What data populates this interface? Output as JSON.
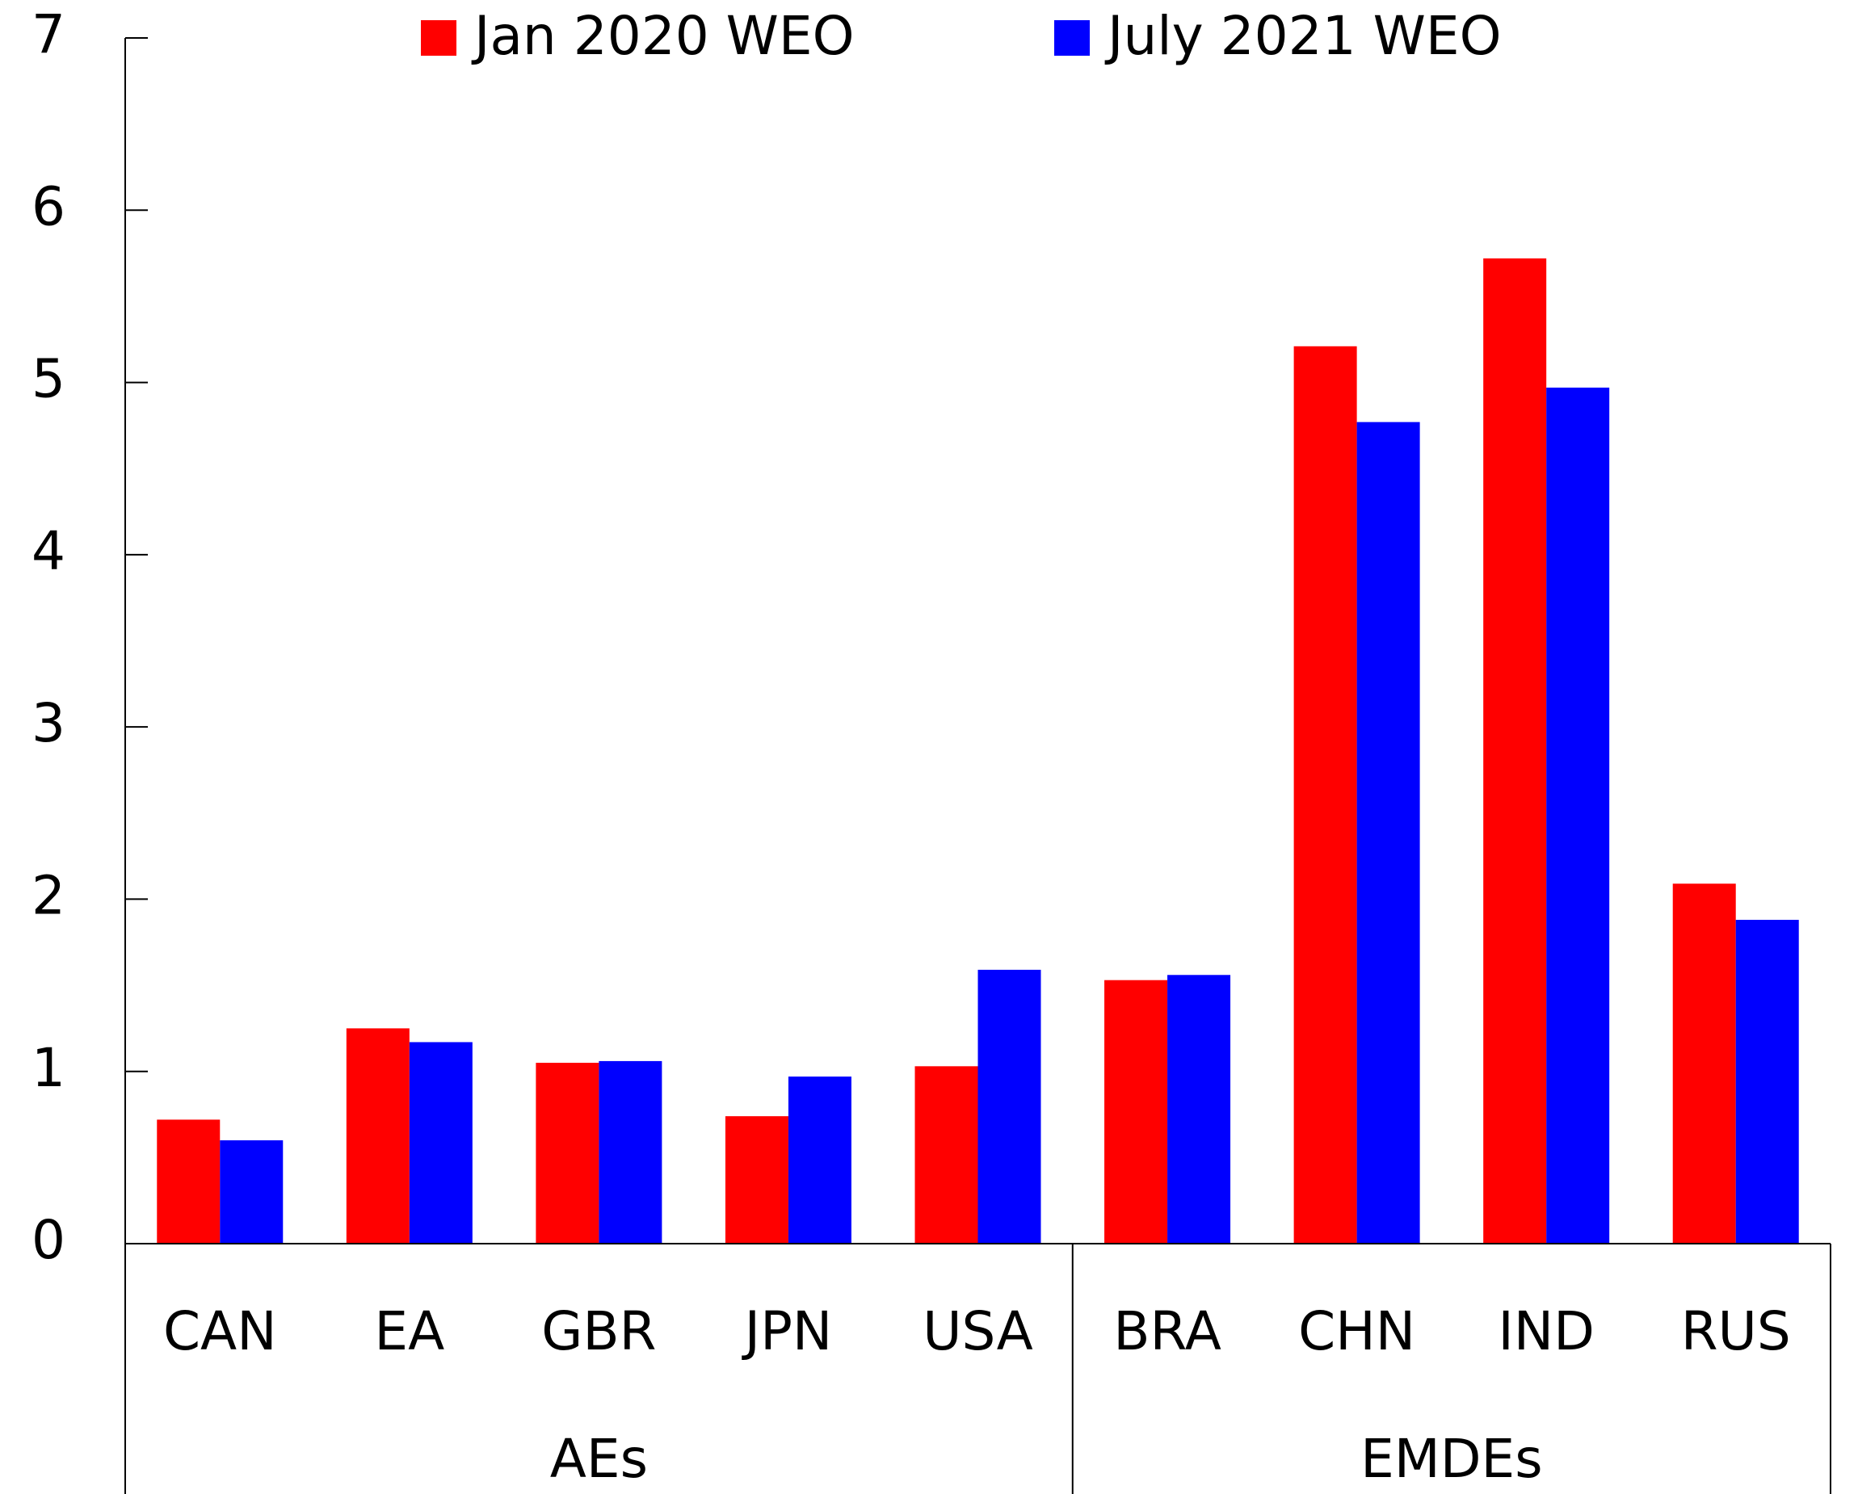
{
  "chart_data": {
    "type": "bar",
    "categories": [
      "CAN",
      "EA",
      "GBR",
      "JPN",
      "USA",
      "BRA",
      "CHN",
      "IND",
      "RUS"
    ],
    "groups": [
      {
        "label": "AEs",
        "size": 5
      },
      {
        "label": "EMDEs",
        "size": 4
      }
    ],
    "series": [
      {
        "name": "Jan 2020 WEO",
        "color": "#ff0000",
        "values": [
          0.72,
          1.25,
          1.05,
          0.74,
          1.03,
          1.53,
          5.21,
          5.72,
          2.09
        ]
      },
      {
        "name": "July 2021 WEO",
        "color": "#0000ff",
        "values": [
          0.6,
          1.17,
          1.06,
          0.97,
          1.59,
          1.56,
          4.77,
          4.97,
          1.88
        ]
      }
    ],
    "ylim": [
      0,
      7
    ],
    "yticks": [
      0,
      1,
      2,
      3,
      4,
      5,
      6,
      7
    ],
    "legend": "top"
  }
}
